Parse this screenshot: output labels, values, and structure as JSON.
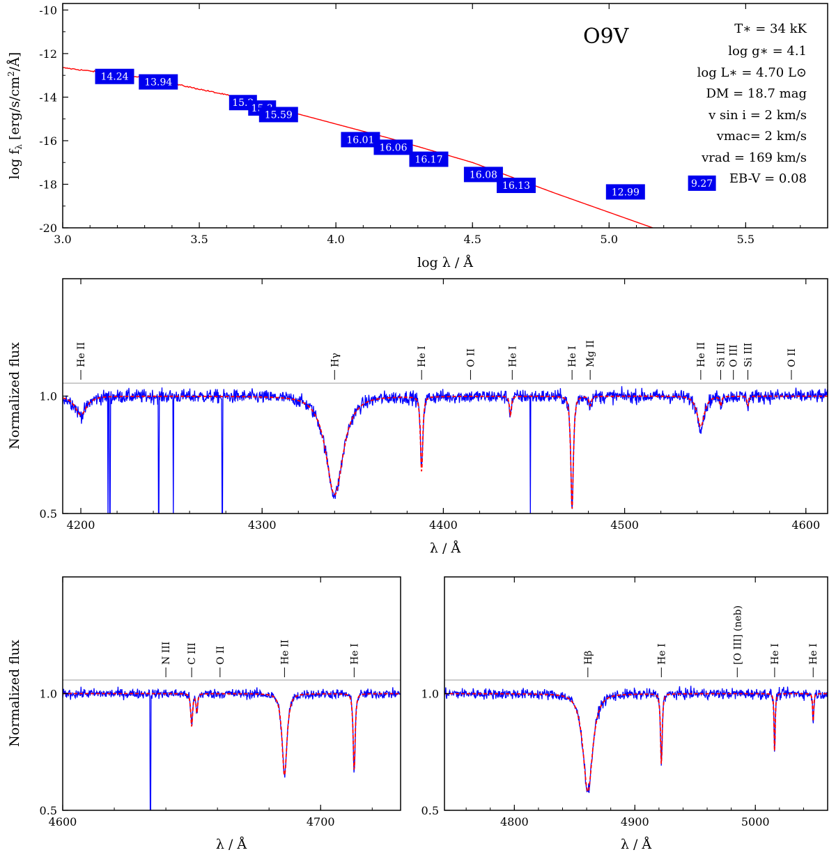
{
  "chart_data": [
    {
      "type": "line",
      "id": "sed",
      "xlabel": "log λ / Å",
      "ylabel": "log f_λ [erg/s/cm²/Å]",
      "xlim": [
        3.0,
        5.8
      ],
      "ylim": [
        -20,
        -9.7
      ],
      "xticks": [
        "3.0",
        "3.5",
        "4.0",
        "4.5",
        "5.0",
        "5.5"
      ],
      "yticks": [
        "-10",
        "-12",
        "-14",
        "-16",
        "-18",
        "-20"
      ],
      "model_curve": {
        "x": [
          3.0,
          3.3,
          3.6,
          3.9,
          4.2,
          4.5,
          4.8,
          5.16
        ],
        "y": [
          -12.65,
          -13.1,
          -13.9,
          -14.9,
          -15.9,
          -17.0,
          -18.4,
          -20.0
        ]
      },
      "photometry": [
        {
          "label": "14.24",
          "x": 3.19,
          "y": -13.05
        },
        {
          "label": "13.94",
          "x": 3.35,
          "y": -13.3
        },
        {
          "label": "15.2",
          "x": 3.66,
          "y": -14.25
        },
        {
          "label": "15.3",
          "x": 3.73,
          "y": -14.5
        },
        {
          "label": "15.59",
          "x": 3.79,
          "y": -14.8
        },
        {
          "label": "16.01",
          "x": 4.09,
          "y": -15.95
        },
        {
          "label": "16.06",
          "x": 4.21,
          "y": -16.3
        },
        {
          "label": "16.17",
          "x": 4.34,
          "y": -16.85
        },
        {
          "label": "16.08",
          "x": 4.54,
          "y": -17.55
        },
        {
          "label": "16.13",
          "x": 4.66,
          "y": -18.05
        },
        {
          "label": "12.99",
          "x": 5.06,
          "y": -18.35
        },
        {
          "label": "9.27",
          "x": 5.34,
          "y": -17.95
        }
      ],
      "spectral_type": "O9V",
      "parameters": {
        "teff": "T∗ = 34 kK",
        "logg": "log g∗ = 4.1",
        "logl": "log L∗ = 4.70 L⊙",
        "dm": "DM = 18.7 mag",
        "vsini": "v sin i = 2 km/s",
        "vmac": "vmac= 2 km/s",
        "vrad": "vrad = 169 km/s",
        "ebv": "EB-V = 0.08"
      }
    },
    {
      "type": "line",
      "id": "spec1",
      "xlabel": "λ / Å",
      "ylabel": "Normalized flux",
      "xlim": [
        4190,
        4612
      ],
      "ylim": [
        0.5,
        1.5
      ],
      "xticks": [
        "4200",
        "4300",
        "4400",
        "4500",
        "4600"
      ],
      "yticks": [
        "1.0",
        "0.5"
      ],
      "absorption_lines": [
        {
          "center": 4200,
          "depth": 0.08,
          "width": 4
        },
        {
          "center": 4340,
          "depth": 0.42,
          "width": 6
        },
        {
          "center": 4388,
          "depth": 0.32,
          "width": 0.8
        },
        {
          "center": 4437,
          "depth": 0.08,
          "width": 0.7
        },
        {
          "center": 4471,
          "depth": 0.48,
          "width": 0.9
        },
        {
          "center": 4481,
          "depth": 0.04,
          "width": 0.8
        },
        {
          "center": 4542,
          "depth": 0.13,
          "width": 2.5
        },
        {
          "center": 4553,
          "depth": 0.04,
          "width": 0.6
        },
        {
          "center": 4568,
          "depth": 0.04,
          "width": 0.6
        }
      ],
      "sharp_features": [
        4215,
        4216,
        4243,
        4251,
        4278,
        4448
      ],
      "line_labels": [
        {
          "label": "He II",
          "x": 4200
        },
        {
          "label": "Hγ",
          "x": 4340
        },
        {
          "label": "He I",
          "x": 4388
        },
        {
          "label": "O II",
          "x": 4415
        },
        {
          "label": "He I",
          "x": 4438
        },
        {
          "label": "He I",
          "x": 4471
        },
        {
          "label": "Mg II",
          "x": 4481
        },
        {
          "label": "He II",
          "x": 4542
        },
        {
          "label": "Si III",
          "x": 4553
        },
        {
          "label": "O III",
          "x": 4560
        },
        {
          "label": "Si III",
          "x": 4568
        },
        {
          "label": "O II",
          "x": 4592
        }
      ]
    },
    {
      "type": "line",
      "id": "spec2",
      "xlabel": "λ / Å",
      "ylabel": "Normalized flux",
      "xlim": [
        4600,
        4731
      ],
      "ylim": [
        0.5,
        1.5
      ],
      "xticks": [
        "4600",
        "4700"
      ],
      "yticks": [
        "1.0",
        "0.5"
      ],
      "absorption_lines": [
        {
          "center": 4650,
          "depth": 0.14,
          "width": 0.45
        },
        {
          "center": 4652,
          "depth": 0.08,
          "width": 0.4
        },
        {
          "center": 4686,
          "depth": 0.35,
          "width": 1.2
        },
        {
          "center": 4713,
          "depth": 0.33,
          "width": 0.5
        }
      ],
      "sharp_features": [
        4634
      ],
      "line_labels": [
        {
          "label": "N III",
          "x": 4640
        },
        {
          "label": "C III",
          "x": 4650
        },
        {
          "label": "O II",
          "x": 4661
        },
        {
          "label": "He II",
          "x": 4686
        },
        {
          "label": "He I",
          "x": 4713
        }
      ]
    },
    {
      "type": "line",
      "id": "spec3",
      "xlabel": "λ / Å",
      "ylabel": "Normalized flux",
      "xlim": [
        4742,
        5060
      ],
      "ylim": [
        0.5,
        1.5
      ],
      "xticks": [
        "4800",
        "4900",
        "5000"
      ],
      "yticks": [
        "1.0",
        "0.5"
      ],
      "absorption_lines": [
        {
          "center": 4861,
          "depth": 0.42,
          "width": 5
        },
        {
          "center": 4922,
          "depth": 0.3,
          "width": 0.9
        },
        {
          "center": 5016,
          "depth": 0.25,
          "width": 0.6
        },
        {
          "center": 5048,
          "depth": 0.12,
          "width": 0.6
        }
      ],
      "sharp_features": [],
      "line_labels": [
        {
          "label": "Hβ",
          "x": 4861
        },
        {
          "label": "He I",
          "x": 4922
        },
        {
          "label": "[O III] (neb)",
          "x": 4985
        },
        {
          "label": "He I",
          "x": 5016
        },
        {
          "label": "He I",
          "x": 5048
        }
      ]
    }
  ]
}
